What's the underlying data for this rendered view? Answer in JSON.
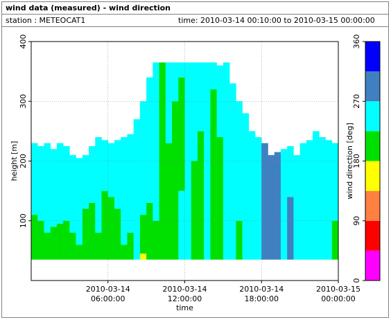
{
  "chart_data": {
    "type": "heatmap",
    "title": "wind data (measured) - wind direction",
    "station": "station : METEOCAT1",
    "period": "time: 2010-03-14 00:10:00 to 2010-03-15 00:00:00",
    "xlabel": "time",
    "ylabel": "height [m]",
    "colorbar_label": "wind direction [deg]",
    "xlim": [
      0,
      24
    ],
    "xticks": [
      {
        "value": 6,
        "label": "2010-03-14 06:00:00"
      },
      {
        "value": 12,
        "label": "2010-03-14 12:00:00"
      },
      {
        "value": 18,
        "label": "2010-03-14 18:00:00"
      },
      {
        "value": 24,
        "label": "2010-03-15 00:00:00"
      }
    ],
    "ylim": [
      0,
      400
    ],
    "yticks": [
      100,
      200,
      300,
      400
    ],
    "clim": [
      0,
      360
    ],
    "cticks": [
      0,
      90,
      180,
      270,
      360
    ],
    "colors": [
      "#ff00ff",
      "#ff0000",
      "#ff8040",
      "#ffff00",
      "#00e000",
      "#00ffff",
      "#4080c0",
      "#0000ff"
    ],
    "grid": true,
    "column_width": 0.5,
    "columns": [
      {
        "x": 0,
        "layers": [
          [
            35,
            110,
            200
          ],
          [
            110,
            230,
            250
          ]
        ]
      },
      {
        "x": 0.5,
        "layers": [
          [
            35,
            100,
            200
          ],
          [
            100,
            225,
            250
          ]
        ]
      },
      {
        "x": 1,
        "layers": [
          [
            35,
            80,
            205
          ],
          [
            80,
            230,
            250
          ]
        ]
      },
      {
        "x": 1.5,
        "layers": [
          [
            35,
            90,
            200
          ],
          [
            90,
            220,
            250
          ]
        ]
      },
      {
        "x": 2,
        "layers": [
          [
            35,
            95,
            200
          ],
          [
            95,
            230,
            250
          ]
        ]
      },
      {
        "x": 2.5,
        "layers": [
          [
            35,
            100,
            205
          ],
          [
            100,
            225,
            250
          ]
        ]
      },
      {
        "x": 3,
        "layers": [
          [
            35,
            80,
            200
          ],
          [
            80,
            210,
            250
          ]
        ]
      },
      {
        "x": 3.5,
        "layers": [
          [
            35,
            60,
            200
          ],
          [
            60,
            205,
            250
          ]
        ]
      },
      {
        "x": 4,
        "layers": [
          [
            35,
            120,
            200
          ],
          [
            120,
            210,
            250
          ]
        ]
      },
      {
        "x": 4.5,
        "layers": [
          [
            35,
            130,
            200
          ],
          [
            130,
            225,
            250
          ]
        ]
      },
      {
        "x": 5,
        "layers": [
          [
            35,
            80,
            205
          ],
          [
            80,
            240,
            250
          ]
        ]
      },
      {
        "x": 5.5,
        "layers": [
          [
            35,
            150,
            200
          ],
          [
            150,
            235,
            250
          ]
        ]
      },
      {
        "x": 6,
        "layers": [
          [
            35,
            140,
            200
          ],
          [
            140,
            230,
            250
          ]
        ]
      },
      {
        "x": 6.5,
        "layers": [
          [
            35,
            120,
            200
          ],
          [
            120,
            235,
            250
          ]
        ]
      },
      {
        "x": 7,
        "layers": [
          [
            35,
            60,
            200
          ],
          [
            60,
            240,
            250
          ]
        ]
      },
      {
        "x": 7.5,
        "layers": [
          [
            35,
            80,
            200
          ],
          [
            80,
            245,
            250
          ]
        ]
      },
      {
        "x": 8,
        "layers": [
          [
            35,
            270,
            250
          ]
        ]
      },
      {
        "x": 8.5,
        "layers": [
          [
            35,
            45,
            160
          ],
          [
            45,
            110,
            200
          ],
          [
            110,
            300,
            250
          ]
        ]
      },
      {
        "x": 9,
        "layers": [
          [
            35,
            130,
            200
          ],
          [
            130,
            340,
            250
          ]
        ]
      },
      {
        "x": 9.5,
        "layers": [
          [
            35,
            100,
            200
          ],
          [
            100,
            365,
            250
          ]
        ]
      },
      {
        "x": 10,
        "layers": [
          [
            35,
            365,
            205
          ]
        ]
      },
      {
        "x": 10.5,
        "layers": [
          [
            35,
            230,
            200
          ],
          [
            230,
            365,
            250
          ]
        ]
      },
      {
        "x": 11,
        "layers": [
          [
            35,
            300,
            200
          ],
          [
            300,
            365,
            250
          ]
        ]
      },
      {
        "x": 11.5,
        "layers": [
          [
            35,
            150,
            250
          ],
          [
            150,
            340,
            200
          ],
          [
            340,
            365,
            250
          ]
        ]
      },
      {
        "x": 12,
        "layers": [
          [
            35,
            365,
            250
          ]
        ]
      },
      {
        "x": 12.5,
        "layers": [
          [
            35,
            200,
            200
          ],
          [
            200,
            365,
            250
          ]
        ]
      },
      {
        "x": 13,
        "layers": [
          [
            35,
            250,
            200
          ],
          [
            250,
            365,
            250
          ]
        ]
      },
      {
        "x": 13.5,
        "layers": [
          [
            35,
            365,
            250
          ]
        ]
      },
      {
        "x": 14,
        "layers": [
          [
            35,
            320,
            200
          ],
          [
            320,
            365,
            250
          ]
        ]
      },
      {
        "x": 14.5,
        "layers": [
          [
            35,
            240,
            200
          ],
          [
            240,
            360,
            250
          ]
        ]
      },
      {
        "x": 15,
        "layers": [
          [
            35,
            365,
            250
          ]
        ]
      },
      {
        "x": 15.5,
        "layers": [
          [
            35,
            330,
            250
          ]
        ]
      },
      {
        "x": 16,
        "layers": [
          [
            35,
            100,
            200
          ],
          [
            100,
            300,
            250
          ]
        ]
      },
      {
        "x": 16.5,
        "layers": [
          [
            35,
            280,
            250
          ]
        ]
      },
      {
        "x": 17,
        "layers": [
          [
            35,
            250,
            250
          ]
        ]
      },
      {
        "x": 17.5,
        "layers": [
          [
            35,
            240,
            250
          ]
        ]
      },
      {
        "x": 18,
        "layers": [
          [
            35,
            230,
            290
          ]
        ]
      },
      {
        "x": 18.5,
        "layers": [
          [
            35,
            210,
            290
          ]
        ]
      },
      {
        "x": 19,
        "layers": [
          [
            35,
            215,
            290
          ]
        ]
      },
      {
        "x": 19.5,
        "layers": [
          [
            35,
            220,
            250
          ]
        ]
      },
      {
        "x": 20,
        "layers": [
          [
            35,
            140,
            290
          ],
          [
            140,
            225,
            250
          ]
        ]
      },
      {
        "x": 20.5,
        "layers": [
          [
            35,
            210,
            250
          ]
        ]
      },
      {
        "x": 21,
        "layers": [
          [
            35,
            230,
            250
          ]
        ]
      },
      {
        "x": 21.5,
        "layers": [
          [
            35,
            235,
            250
          ]
        ]
      },
      {
        "x": 22,
        "layers": [
          [
            35,
            250,
            250
          ]
        ]
      },
      {
        "x": 22.5,
        "layers": [
          [
            35,
            240,
            250
          ]
        ]
      },
      {
        "x": 23,
        "layers": [
          [
            35,
            235,
            250
          ]
        ]
      },
      {
        "x": 23.5,
        "layers": [
          [
            35,
            100,
            200
          ],
          [
            100,
            230,
            250
          ]
        ]
      }
    ]
  }
}
